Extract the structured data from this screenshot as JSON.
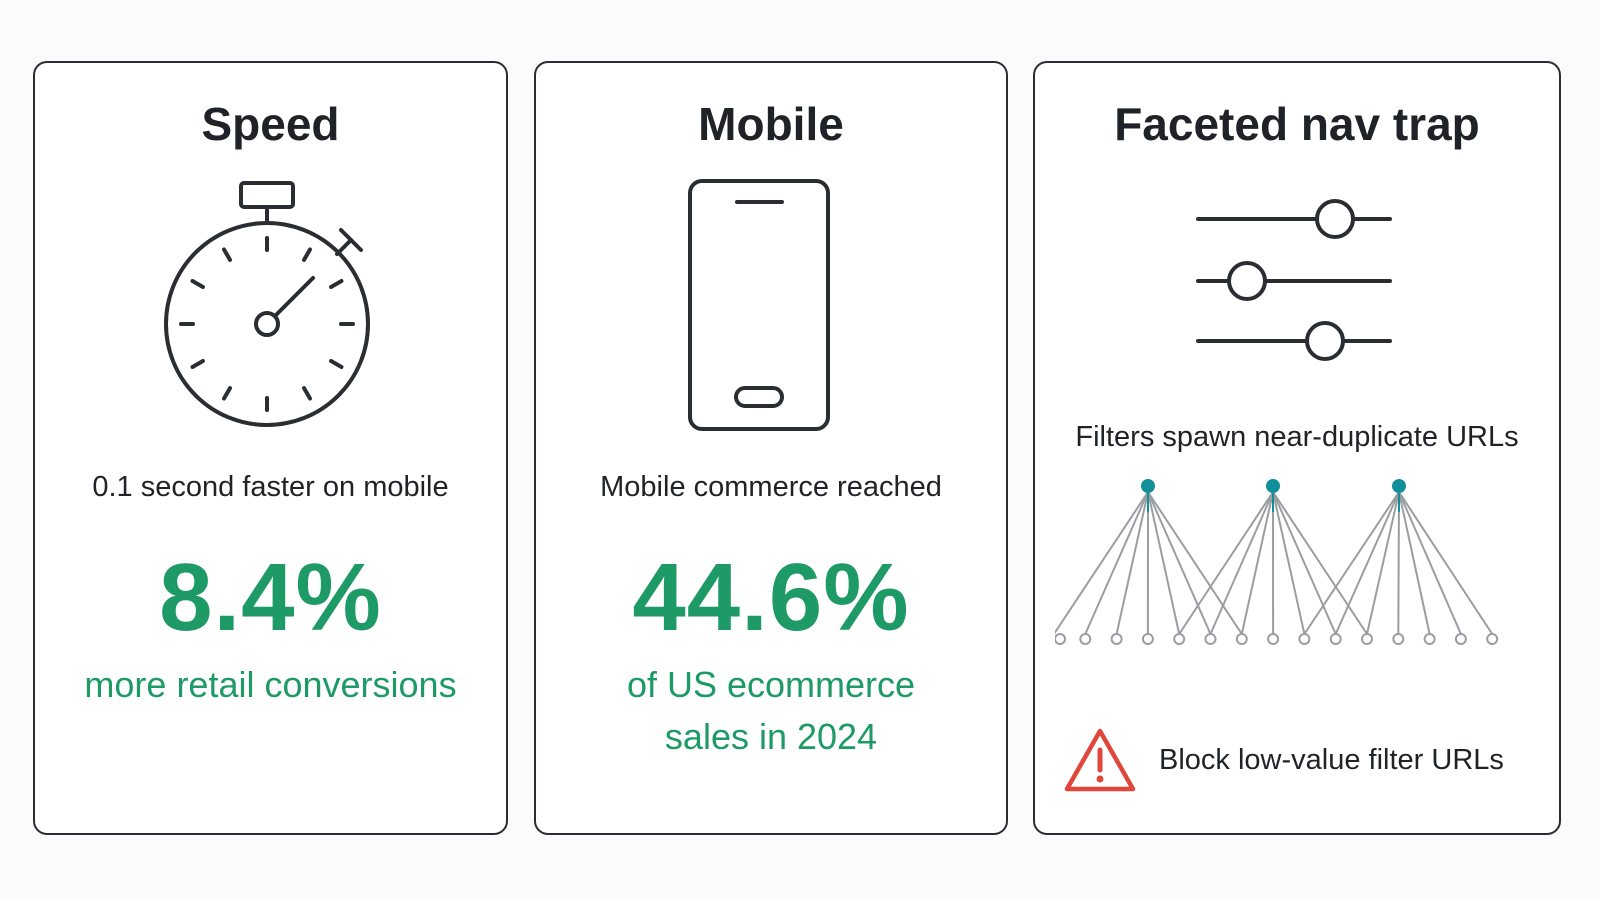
{
  "cards": {
    "speed": {
      "title": "Speed",
      "caption": "0.1 second faster on mobile",
      "stat": "8.4%",
      "stat_subtitle": "more retail conversions",
      "icon": "stopwatch-icon"
    },
    "mobile": {
      "title": "Mobile",
      "caption": "Mobile commerce reached",
      "stat": "44.6%",
      "stat_subtitle_line1": "of US ecommerce",
      "stat_subtitle_line2": "sales in 2024",
      "icon": "smartphone-icon"
    },
    "facet": {
      "title": "Faceted nav trap",
      "caption": "Filters spawn near-duplicate URLs",
      "warning": "Block low-value filter URLs",
      "icons": [
        "sliders-icon",
        "url-tree-icon",
        "warning-icon"
      ]
    }
  },
  "colors": {
    "accent_green": "#1e9a66",
    "teal": "#12909a",
    "warning_red": "#e0463a",
    "ink": "#1f2328"
  }
}
